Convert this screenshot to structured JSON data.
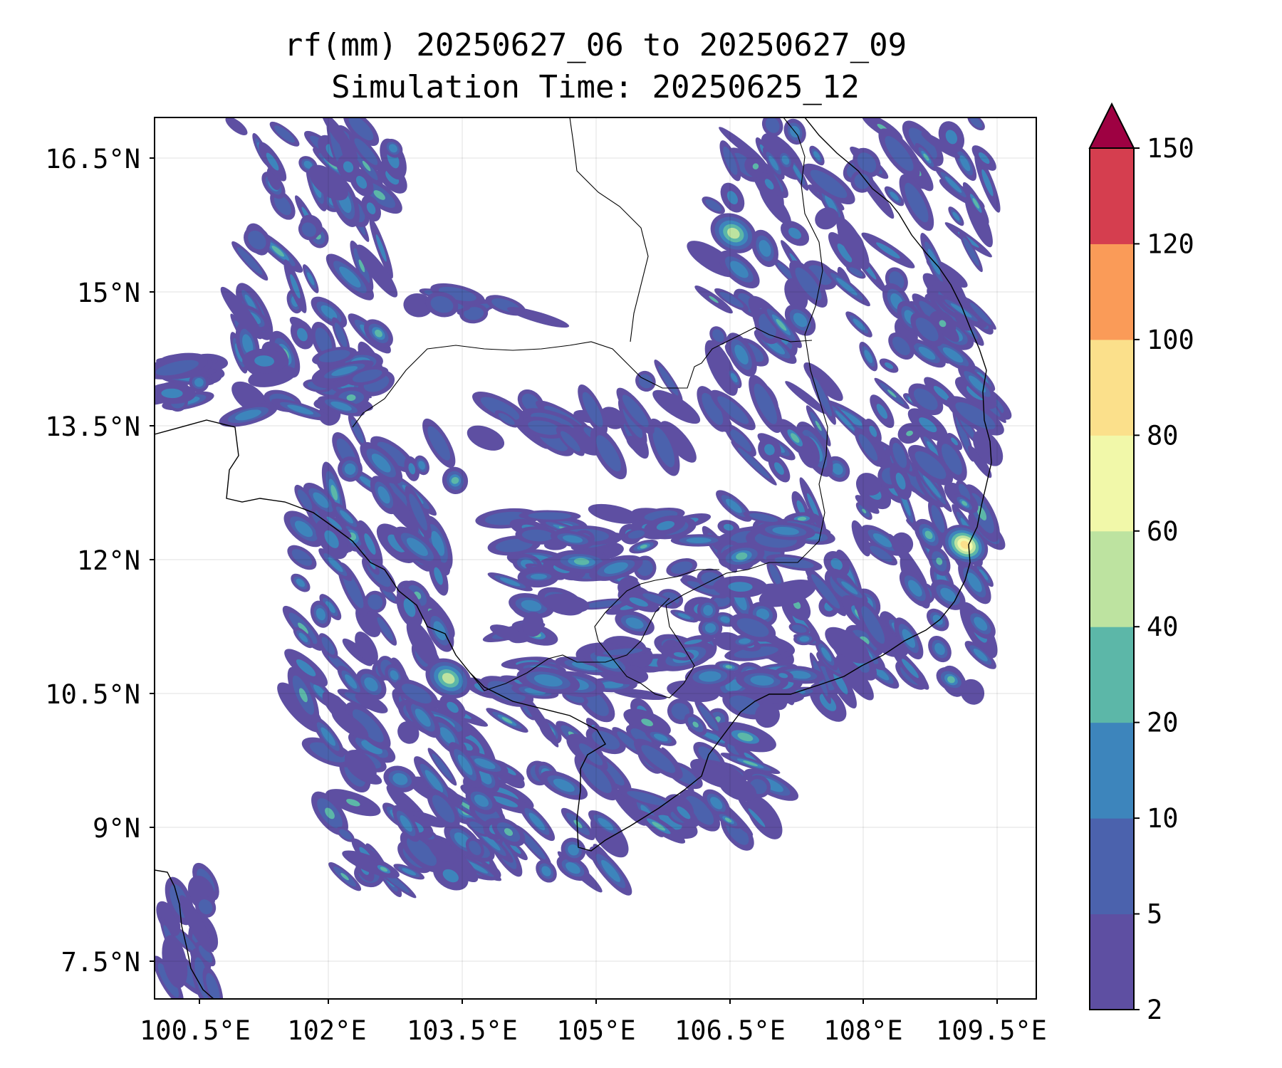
{
  "title": {
    "line1": "rf(mm) 20250627_06 to 20250627_09",
    "line2": "Simulation Time: 20250625_12"
  },
  "axes": {
    "x_ticks": [
      "100.5°E",
      "102°E",
      "103.5°E",
      "105°E",
      "106.5°E",
      "108°E",
      "109.5°E"
    ],
    "y_ticks": [
      "16.5°N",
      "15°N",
      "13.5°N",
      "12°N",
      "10.5°N",
      "9°N",
      "7.5°N"
    ]
  },
  "colorbar": {
    "levels": [
      "2",
      "5",
      "10",
      "20",
      "40",
      "60",
      "80",
      "100",
      "120",
      "150"
    ],
    "colors": [
      "#5e4fa2",
      "#4b62ad",
      "#3d85bc",
      "#5cb7a8",
      "#bde3a0",
      "#f1f8a9",
      "#fbe08b",
      "#fa9b58",
      "#d53e4f",
      "#9e0142"
    ],
    "extend": "max"
  },
  "map_data": {
    "type": "filled-contour",
    "variable": "rf(mm)",
    "lon_range": [
      100.0,
      109.9
    ],
    "lat_range": [
      7.0,
      16.9
    ],
    "grid": "light-gray",
    "hotspots": [
      {
        "lon": 109.1,
        "lat": 12.1,
        "max_category": "80"
      },
      {
        "lon": 106.5,
        "lat": 15.6,
        "max_category": "40"
      },
      {
        "lon": 103.3,
        "lat": 10.6,
        "max_category": "40"
      }
    ]
  }
}
